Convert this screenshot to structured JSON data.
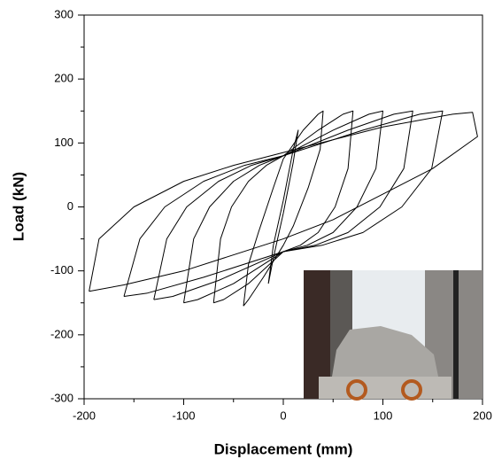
{
  "chart_data": {
    "type": "line",
    "xlabel": "Displacement (mm)",
    "ylabel": "Load (kN)",
    "xlim": [
      -200,
      200
    ],
    "ylim": [
      -300,
      300
    ],
    "xticks": [
      -200,
      -100,
      0,
      100,
      200
    ],
    "yticks": [
      -300,
      -200,
      -100,
      0,
      100,
      200,
      300
    ],
    "xminorticks": [
      -150,
      -50,
      50,
      150
    ],
    "yminorticks": [
      -250,
      -150,
      -50,
      50,
      150,
      250
    ],
    "color": "#000000",
    "series": [
      {
        "x": [
          -15,
          -10,
          0,
          10,
          15,
          10,
          0,
          -10,
          -15
        ],
        "values": [
          -120,
          -60,
          10,
          90,
          120,
          70,
          -10,
          -80,
          -120
        ]
      },
      {
        "x": [
          -40,
          -35,
          -25,
          -10,
          0,
          20,
          35,
          40,
          37,
          25,
          10,
          0,
          -20,
          -35,
          -40
        ],
        "values": [
          -155,
          -90,
          -40,
          30,
          75,
          120,
          145,
          150,
          90,
          30,
          -30,
          -60,
          -110,
          -145,
          -155
        ]
      },
      {
        "x": [
          -70,
          -63,
          -52,
          -35,
          -17,
          0,
          35,
          60,
          70,
          65,
          52,
          35,
          17,
          0,
          -35,
          -60,
          -70
        ],
        "values": [
          -150,
          -50,
          0,
          40,
          65,
          80,
          120,
          145,
          150,
          60,
          0,
          -40,
          -60,
          -70,
          -120,
          -145,
          -150
        ]
      },
      {
        "x": [
          -100,
          -90,
          -74,
          -50,
          -24,
          0,
          50,
          86,
          100,
          93,
          74,
          50,
          24,
          0,
          -50,
          -86,
          -100
        ],
        "values": [
          -150,
          -50,
          0,
          40,
          65,
          80,
          120,
          145,
          150,
          60,
          0,
          -40,
          -60,
          -70,
          -120,
          -145,
          -150
        ]
      },
      {
        "x": [
          -130,
          -117,
          -97,
          -65,
          -32,
          0,
          65,
          111,
          130,
          121,
          97,
          65,
          32,
          0,
          -65,
          -111,
          -130
        ],
        "values": [
          -145,
          -50,
          0,
          40,
          65,
          80,
          120,
          145,
          150,
          60,
          0,
          -40,
          -60,
          -70,
          -115,
          -140,
          -145
        ]
      },
      {
        "x": [
          -160,
          -144,
          -119,
          -80,
          -39,
          0,
          80,
          137,
          160,
          149,
          119,
          80,
          39,
          0,
          -80,
          -137,
          -160
        ],
        "values": [
          -140,
          -50,
          0,
          40,
          65,
          80,
          120,
          145,
          150,
          60,
          0,
          -40,
          -60,
          -70,
          -110,
          -135,
          -140
        ]
      },
      {
        "x": [
          -195,
          -185,
          -150,
          -100,
          -50,
          0,
          100,
          170,
          190,
          195,
          150,
          100,
          50,
          0,
          -100,
          -160,
          -195
        ],
        "values": [
          -132,
          -50,
          0,
          40,
          65,
          85,
          125,
          145,
          148,
          110,
          60,
          20,
          -20,
          -50,
          -100,
          -122,
          -132
        ]
      }
    ]
  }
}
